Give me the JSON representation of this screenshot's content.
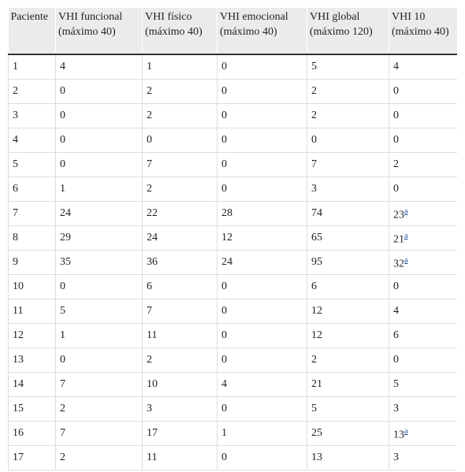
{
  "table": {
    "headers": [
      "Paciente",
      "VHI funcional (máximo 40)",
      "VHI físico (máximo 40)",
      "VHI emocional (máximo 40)",
      "VHI global (máximo 120)",
      "VHI 10 (máximo 40)"
    ],
    "rows": [
      [
        "1",
        "4",
        "1",
        "0",
        "5",
        "4"
      ],
      [
        "2",
        "0",
        "2",
        "0",
        "2",
        "0"
      ],
      [
        "3",
        "0",
        "2",
        "0",
        "2",
        "0"
      ],
      [
        "4",
        "0",
        "0",
        "0",
        "0",
        "0"
      ],
      [
        "5",
        "0",
        "7",
        "0",
        "7",
        "2"
      ],
      [
        "6",
        "1",
        "2",
        "0",
        "3",
        "0"
      ],
      [
        "7",
        "24",
        "22",
        "28",
        "74",
        {
          "text": "23",
          "note": "a"
        }
      ],
      [
        "8",
        "29",
        "24",
        "12",
        "65",
        {
          "text": "21",
          "note": "a"
        }
      ],
      [
        "9",
        "35",
        "36",
        "24",
        "95",
        {
          "text": "32",
          "note": "a"
        }
      ],
      [
        "10",
        "0",
        "6",
        "0",
        "6",
        "0"
      ],
      [
        "11",
        "5",
        "7",
        "0",
        "12",
        "4"
      ],
      [
        "12",
        "1",
        "11",
        "0",
        "12",
        "6"
      ],
      [
        "13",
        "0",
        "2",
        "0",
        "2",
        "0"
      ],
      [
        "14",
        "7",
        "10",
        "4",
        "21",
        "5"
      ],
      [
        "15",
        "2",
        "3",
        "0",
        "5",
        "3"
      ],
      [
        "16",
        "7",
        "17",
        "1",
        "25",
        {
          "text": "13",
          "note": "a"
        }
      ],
      [
        "17",
        "2",
        "11",
        "0",
        "13",
        "3"
      ]
    ]
  }
}
